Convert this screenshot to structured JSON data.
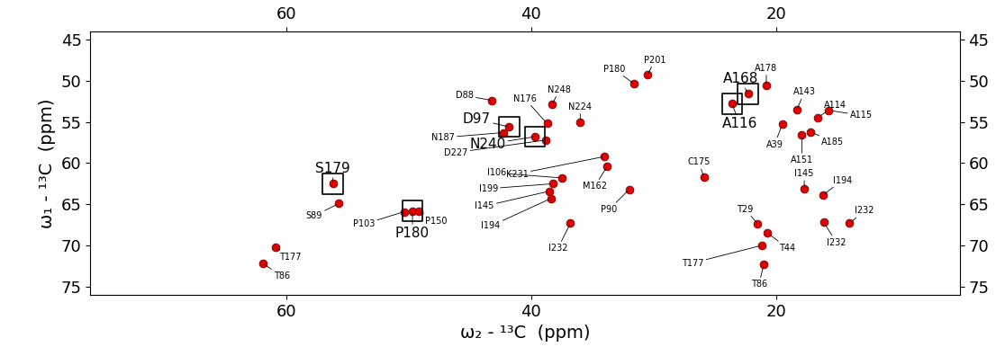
{
  "chart_data": {
    "type": "scatter",
    "xlabel": "ω₂ - ¹³C  (ppm)",
    "ylabel": "ω₁ - ¹³C  (ppm)",
    "xlim": [
      76,
      5
    ],
    "ylim": [
      76,
      44
    ],
    "xticks": [
      60,
      40,
      20
    ],
    "yticks": [
      45,
      50,
      55,
      60,
      65,
      70,
      75
    ],
    "series": [
      {
        "marker": "square",
        "color": "#e00000",
        "labels": [
          "S179",
          "P180",
          "D97",
          "N240",
          "A116",
          "A168"
        ],
        "x": [
          56.2,
          49.7,
          41.8,
          39.7,
          23.6,
          22.3
        ],
        "y": [
          62.5,
          65.8,
          55.6,
          56.8,
          52.8,
          51.6
        ]
      },
      {
        "marker": "circle",
        "color": "#e00000",
        "labels": [
          "S89",
          "T177",
          "T86",
          "P103",
          "P150",
          "D88",
          "N176",
          "N248",
          "N224",
          "N187",
          "D227",
          "K231",
          "M162",
          "I106",
          "I199",
          "I145",
          "I194",
          "I232",
          "P90",
          "P180",
          "P201",
          "C175",
          "T29",
          "T44",
          "T177",
          "T86",
          "I145",
          "I194",
          "I232",
          "I232",
          "A178",
          "A143",
          "A114",
          "A115",
          "A39",
          "A185",
          "A151"
        ],
        "x": [
          55.7,
          60.9,
          61.9,
          50.4,
          49.2,
          43.2,
          38.7,
          38.3,
          36.0,
          42.3,
          38.8,
          34.0,
          33.8,
          37.5,
          38.2,
          38.5,
          38.4,
          36.8,
          32.0,
          31.6,
          30.5,
          25.9,
          21.5,
          20.7,
          21.2,
          21.0,
          17.7,
          16.2,
          16.1,
          14.0,
          20.8,
          18.3,
          16.6,
          15.7,
          19.5,
          17.2,
          17.9
        ],
        "y": [
          64.9,
          70.2,
          72.2,
          65.9,
          65.8,
          52.4,
          55.2,
          52.9,
          55.0,
          56.3,
          57.2,
          59.2,
          60.4,
          61.8,
          62.5,
          63.4,
          64.3,
          67.3,
          63.2,
          50.4,
          49.3,
          61.7,
          67.4,
          68.5,
          70.0,
          72.3,
          63.1,
          63.9,
          67.2,
          67.3,
          50.6,
          53.5,
          54.5,
          53.6,
          55.3,
          56.2,
          56.6
        ]
      }
    ]
  }
}
